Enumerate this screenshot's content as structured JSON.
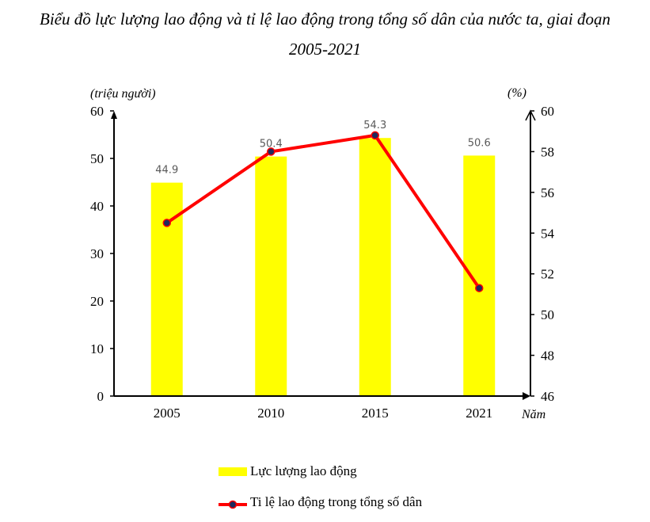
{
  "title": {
    "line1": "Biểu đồ lực lượng lao động và tỉ lệ lao động trong tổng số dân của nước ta, giai đoạn",
    "line2": "2005-2021"
  },
  "axes": {
    "left_unit": "(triệu người)",
    "right_unit": "(%)",
    "x_unit": "Năm",
    "left_ticks": [
      "0",
      "10",
      "20",
      "30",
      "40",
      "50",
      "60"
    ],
    "right_ticks": [
      "46",
      "48",
      "50",
      "52",
      "54",
      "56",
      "58",
      "60"
    ]
  },
  "legend": {
    "bar_label": "Lực lượng lao động",
    "line_label": "Ti lệ lao động trong tổng số dân"
  },
  "colors": {
    "bar": "#ffff00",
    "line": "#ff0000",
    "marker": "#1f2a5c"
  },
  "chart_data": {
    "type": "bar+line",
    "title": "Biểu đồ lực lượng lao động và tỉ lệ lao động trong tổng số dân của nước ta, giai đoạn 2005-2021",
    "categories": [
      "2005",
      "2010",
      "2015",
      "2021"
    ],
    "xlabel": "Năm",
    "series": [
      {
        "name": "Lực lượng lao động",
        "type": "bar",
        "axis": "left",
        "unit": "triệu người",
        "values": [
          44.9,
          50.4,
          54.3,
          50.6
        ],
        "labels": [
          "44.9",
          "50.4",
          "54.3",
          "50.6"
        ]
      },
      {
        "name": "Ti lệ lao động trong tổng số dân",
        "type": "line",
        "axis": "right",
        "unit": "%",
        "values": [
          54.5,
          58.0,
          58.8,
          51.3
        ]
      }
    ],
    "ylabel_left": "(triệu người)",
    "ylim_left": [
      0,
      60
    ],
    "ylabel_right": "(%)",
    "ylim_right": [
      46,
      60
    ],
    "grid": false,
    "legend_position": "bottom"
  }
}
